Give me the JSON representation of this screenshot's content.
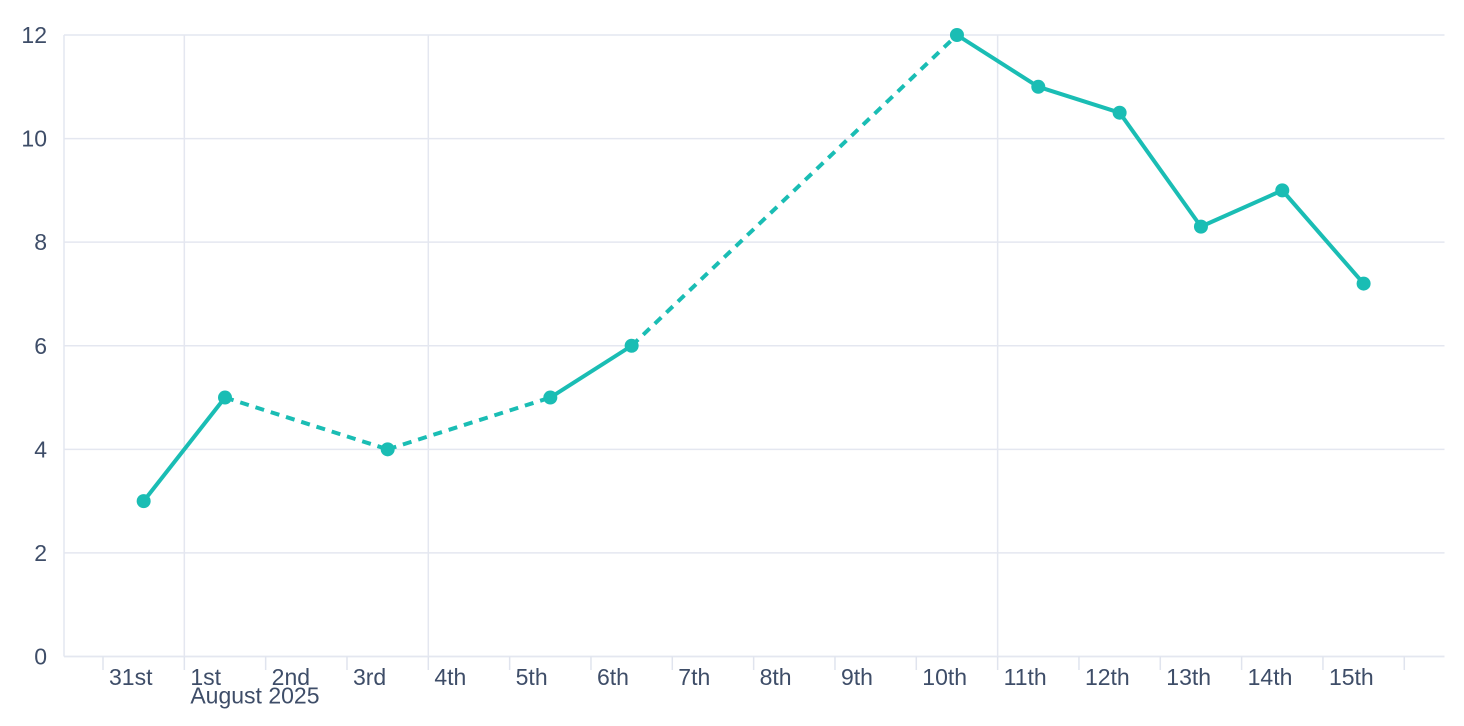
{
  "page": {
    "background": "#ffffff"
  },
  "chart_data": {
    "type": "line",
    "title": "",
    "xlabel": "",
    "ylabel": "",
    "legend": false,
    "grid": true,
    "x_axis": {
      "unit": "day",
      "tick_labels": [
        "31st",
        "1st",
        "2nd",
        "3rd",
        "4th",
        "5th",
        "6th",
        "7th",
        "8th",
        "9th",
        "10th",
        "11th",
        "12th",
        "13th",
        "14th",
        "15th"
      ],
      "secondary_label": "August 2025",
      "secondary_label_tick_index": 1,
      "vertical_gridline_day_indices": [
        1,
        4,
        11
      ],
      "label_align": "left-of-tick"
    },
    "y_axis": {
      "tick_values": [
        0,
        2,
        4,
        6,
        8,
        10,
        12
      ],
      "tick_labels": [
        "0",
        "2",
        "4",
        "6",
        "8",
        "10",
        "12"
      ],
      "ylim": [
        0,
        12
      ],
      "position": "left"
    },
    "series": [
      {
        "name": "daily-values",
        "color": "#1abdb4",
        "marker": "circle",
        "gap_style": "dashed",
        "points": [
          {
            "x": "31st",
            "day_index": 0,
            "value": 3
          },
          {
            "x": "1st",
            "day_index": 1,
            "value": 5
          },
          {
            "x": "3rd",
            "day_index": 3,
            "value": 4
          },
          {
            "x": "5th",
            "day_index": 5,
            "value": 5
          },
          {
            "x": "6th",
            "day_index": 6,
            "value": 6
          },
          {
            "x": "10th",
            "day_index": 10,
            "value": 12
          },
          {
            "x": "11th",
            "day_index": 11,
            "value": 11
          },
          {
            "x": "12th",
            "day_index": 12,
            "value": 10.5
          },
          {
            "x": "13th",
            "day_index": 13,
            "value": 8.3
          },
          {
            "x": "14th",
            "day_index": 14,
            "value": 9
          },
          {
            "x": "15th",
            "day_index": 15,
            "value": 7.2
          }
        ]
      }
    ]
  },
  "colors": {
    "line": "#1abdb4",
    "marker": "#1abdb4",
    "grid": "#e4e7f0",
    "axis_line": "#e4e7f0",
    "tick_mark": "#e0e4ee",
    "text": "#3e4d68",
    "background": "#ffffff"
  }
}
